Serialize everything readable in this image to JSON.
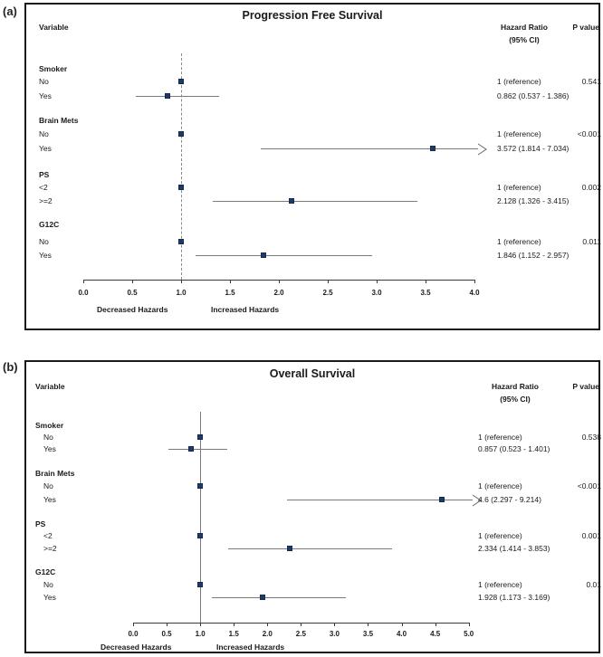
{
  "colors": {
    "marker": "#1e3a69",
    "marker_border": "#15284d",
    "ci_line": "#7a7a7a",
    "axis_line": "#3a3a3a",
    "ref_line": "#8a8a8a",
    "arrow": "#666666",
    "text": "#1a1a1a",
    "panel_border": "#1a1a1a"
  },
  "chart_data": [
    {
      "type": "forest",
      "panel_label": "(a)",
      "title": "Progression Free Survival",
      "columns": {
        "variable": "Variable",
        "hazard_line1": "Hazard Ratio",
        "hazard_line2": "(95% CI)",
        "pvalue": "P value"
      },
      "axis": {
        "min": 0,
        "max": 4,
        "step": 0.5,
        "ref_line": 1.0,
        "ref_style": "dashed",
        "ticks": [
          "0.0",
          "0.5",
          "1.0",
          "1.5",
          "2.0",
          "2.5",
          "3.0",
          "3.5",
          "4.0"
        ]
      },
      "captions": {
        "left": "Decreased Hazards",
        "right": "Increased Hazards"
      },
      "groups": [
        {
          "name": "Smoker",
          "rows": [
            {
              "label": "No",
              "hr": 1.0,
              "ci_low": null,
              "ci_high": null,
              "hr_text": "1 (reference)",
              "p": "0.541"
            },
            {
              "label": "Yes",
              "hr": 0.862,
              "ci_low": 0.537,
              "ci_high": 1.386,
              "hr_text": "0.862 (0.537 - 1.386)",
              "p": ""
            }
          ]
        },
        {
          "name": "Brain Mets",
          "rows": [
            {
              "label": "No",
              "hr": 1.0,
              "ci_low": null,
              "ci_high": null,
              "hr_text": "1 (reference)",
              "p": "<0.001"
            },
            {
              "label": "Yes",
              "hr": 3.572,
              "ci_low": 1.814,
              "ci_high": 7.034,
              "hr_text": "3.572 (1.814 - 7.034)",
              "p": ""
            }
          ]
        },
        {
          "name": "PS",
          "rows": [
            {
              "label": "<2",
              "hr": 1.0,
              "ci_low": null,
              "ci_high": null,
              "hr_text": "1 (reference)",
              "p": "0.002"
            },
            {
              "label": ">=2",
              "hr": 2.128,
              "ci_low": 1.326,
              "ci_high": 3.415,
              "hr_text": "2.128 (1.326 - 3.415)",
              "p": ""
            }
          ]
        },
        {
          "name": "G12C",
          "rows": [
            {
              "label": "No",
              "hr": 1.0,
              "ci_low": null,
              "ci_high": null,
              "hr_text": "1 (reference)",
              "p": "0.011"
            },
            {
              "label": "Yes",
              "hr": 1.846,
              "ci_low": 1.152,
              "ci_high": 2.957,
              "hr_text": "1.846 (1.152 - 2.957)",
              "p": ""
            }
          ]
        }
      ]
    },
    {
      "type": "forest",
      "panel_label": "(b)",
      "title": "Overall Survival",
      "columns": {
        "variable": "Variable",
        "hazard_line1": "Hazard Ratio",
        "hazard_line2": "(95% CI)",
        "pvalue": "P value"
      },
      "axis": {
        "min": 0,
        "max": 5,
        "step": 0.5,
        "ref_line": 1.0,
        "ref_style": "solid",
        "ticks": [
          "0.0",
          "0.5",
          "1.0",
          "1.5",
          "2.0",
          "2.5",
          "3.0",
          "3.5",
          "4.0",
          "4.5",
          "5.0"
        ]
      },
      "captions": {
        "left": "Decreased Hazards",
        "right": "Increased Hazards"
      },
      "groups": [
        {
          "name": "Smoker",
          "rows": [
            {
              "label": "No",
              "hr": 1.0,
              "ci_low": null,
              "ci_high": null,
              "hr_text": "1 (reference)",
              "p": "0.538"
            },
            {
              "label": "Yes",
              "hr": 0.857,
              "ci_low": 0.523,
              "ci_high": 1.401,
              "hr_text": "0.857 (0.523 - 1.401)",
              "p": ""
            }
          ]
        },
        {
          "name": "Brain Mets",
          "rows": [
            {
              "label": "No",
              "hr": 1.0,
              "ci_low": null,
              "ci_high": null,
              "hr_text": "1 (reference)",
              "p": "<0.001"
            },
            {
              "label": "Yes",
              "hr": 4.6,
              "ci_low": 2.297,
              "ci_high": 9.214,
              "hr_text": "4.6 (2.297 - 9.214)",
              "p": ""
            }
          ]
        },
        {
          "name": "PS",
          "rows": [
            {
              "label": "<2",
              "hr": 1.0,
              "ci_low": null,
              "ci_high": null,
              "hr_text": "1 (reference)",
              "p": "0.001"
            },
            {
              "label": ">=2",
              "hr": 2.334,
              "ci_low": 1.414,
              "ci_high": 3.853,
              "hr_text": "2.334 (1.414 - 3.853)",
              "p": ""
            }
          ]
        },
        {
          "name": "G12C",
          "rows": [
            {
              "label": "No",
              "hr": 1.0,
              "ci_low": null,
              "ci_high": null,
              "hr_text": "1 (reference)",
              "p": "0.01"
            },
            {
              "label": "Yes",
              "hr": 1.928,
              "ci_low": 1.173,
              "ci_high": 3.169,
              "hr_text": "1.928 (1.173 - 3.169)",
              "p": ""
            }
          ]
        }
      ]
    }
  ]
}
